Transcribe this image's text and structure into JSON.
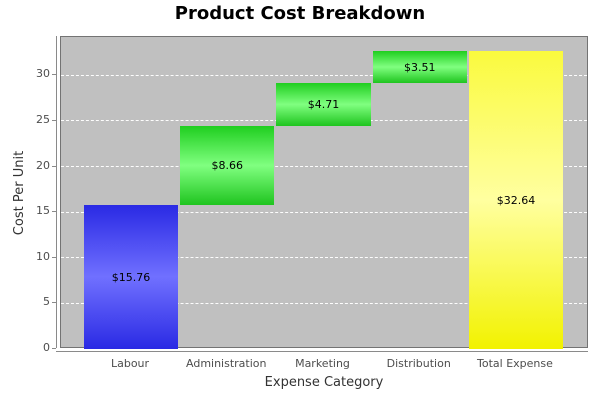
{
  "title": "Product Cost Breakdown",
  "chart_data": {
    "type": "bar",
    "subtype": "waterfall",
    "title": "Product Cost Breakdown",
    "xlabel": "Expense Category",
    "ylabel": "Cost Per Unit",
    "categories": [
      "Labour",
      "Administration",
      "Marketing",
      "Distribution",
      "Total Expense"
    ],
    "segments": [
      {
        "category": "Labour",
        "start": 0,
        "end": 15.76,
        "value": 15.76,
        "label": "$15.76",
        "color": "blue"
      },
      {
        "category": "Administration",
        "start": 15.76,
        "end": 24.42,
        "value": 8.66,
        "label": "$8.66",
        "color": "green"
      },
      {
        "category": "Marketing",
        "start": 24.42,
        "end": 29.13,
        "value": 4.71,
        "label": "$4.71",
        "color": "green"
      },
      {
        "category": "Distribution",
        "start": 29.13,
        "end": 32.64,
        "value": 3.51,
        "label": "$3.51",
        "color": "green"
      },
      {
        "category": "Total Expense",
        "start": 0,
        "end": 32.64,
        "value": 32.64,
        "label": "$32.64",
        "color": "yellow"
      }
    ],
    "y_ticks": [
      0,
      5,
      10,
      15,
      20,
      25,
      30
    ],
    "ylim": [
      0,
      34.2
    ],
    "grid": true,
    "legend": "none",
    "colors": {
      "first_bar": "#3333ee",
      "intermediate_bars": "#22dd22",
      "total_bar": "#ffff33",
      "plot_background": "#c0c0c0",
      "gridline": "#ffffff",
      "axis_line": "#8a8a8a",
      "title_text": "#000000",
      "tick_text": "#4d4d4d"
    }
  }
}
